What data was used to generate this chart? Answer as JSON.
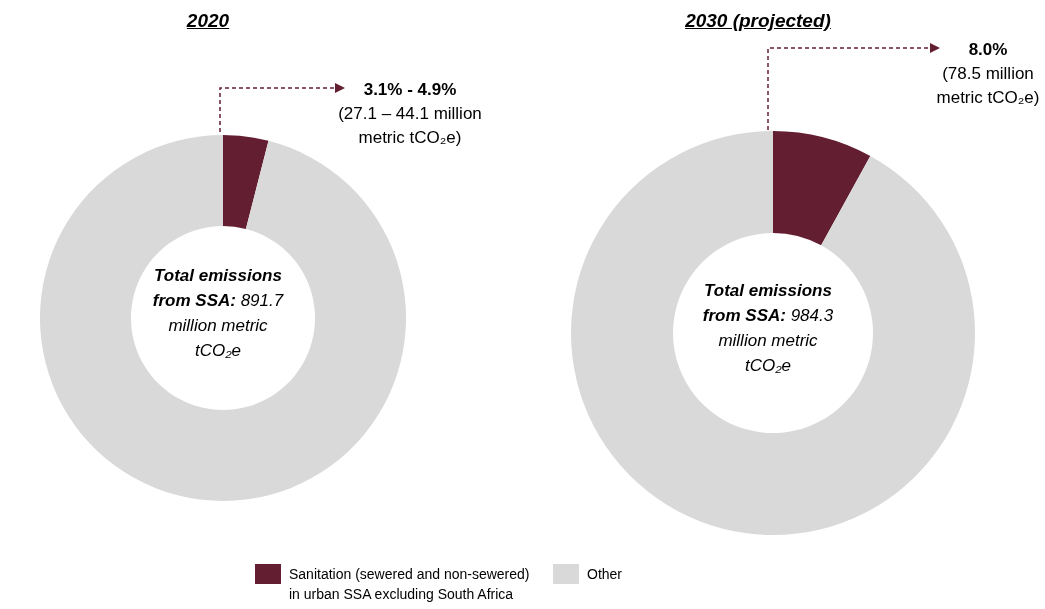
{
  "chart_data": [
    {
      "type": "donut",
      "title": "2020",
      "categories": [
        "Sanitation (sewered and non-sewered) in urban SSA excluding South Africa",
        "Other"
      ],
      "values": [
        4.0,
        96.0
      ],
      "colors": [
        "#641e32",
        "#d9d9d9"
      ],
      "legend": "bottom",
      "annotations": [
        "3.1% - 4.9%",
        "(27.1 – 44.1 million metric tCO₂e)",
        "Total emissions from SSA:",
        "891.7 million metric tCO₂e"
      ]
    },
    {
      "type": "donut",
      "title": "2030 (projected)",
      "categories": [
        null,
        null
      ],
      "values": [
        8.0,
        92.0
      ],
      "colors": [
        "#641e32",
        "#d9d9d9"
      ],
      "annotations": [
        "8.0%",
        "(78.5 million metric tCO₂e)",
        "Total emissions from SSA:",
        "984.3 million metric tCO₂e"
      ]
    }
  ]
}
